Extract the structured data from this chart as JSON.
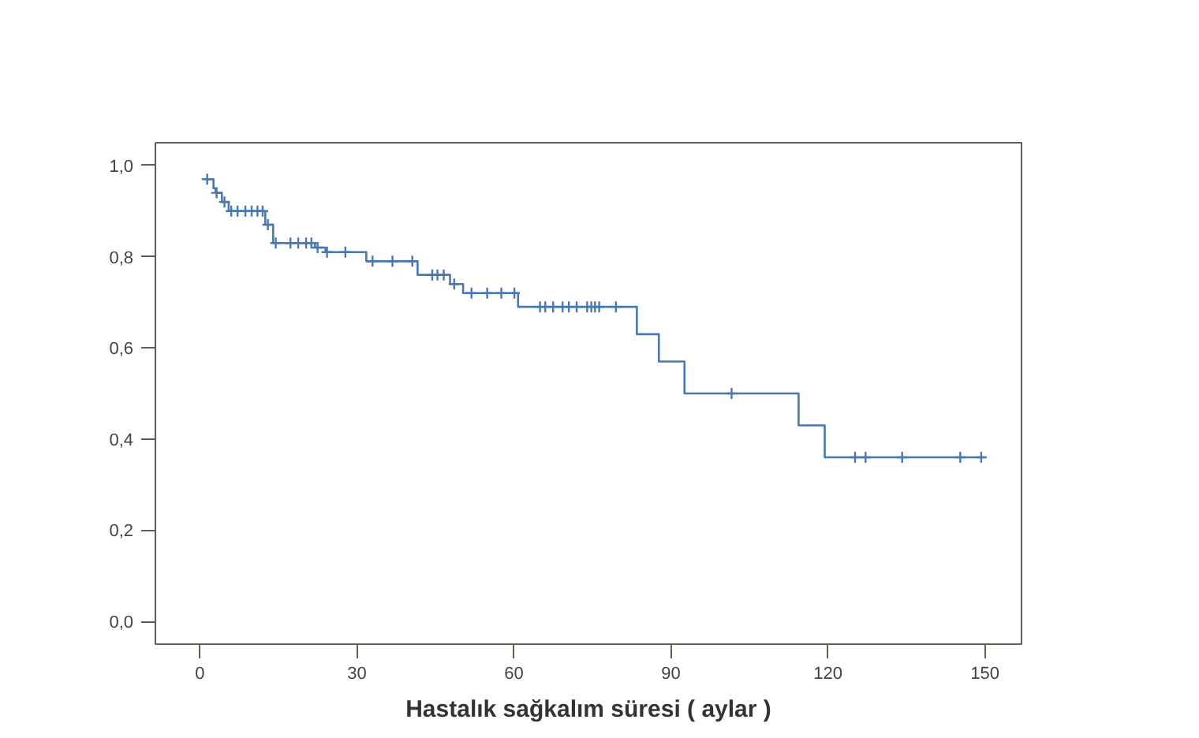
{
  "chart_data": {
    "type": "step",
    "xlabel": "Hastalık sağkalım süresi ( aylar )",
    "xlim": [
      -8.5,
      157
    ],
    "ylim": [
      -0.05,
      1.05
    ],
    "xticks": [
      0,
      30,
      60,
      90,
      120,
      150
    ],
    "yticks": [
      {
        "value": 0,
        "label": "0,0"
      },
      {
        "value": 0.2,
        "label": "0,2"
      },
      {
        "value": 0.4,
        "label": "0,4"
      },
      {
        "value": 0.6,
        "label": "0,6"
      },
      {
        "value": 0.8,
        "label": "0,8"
      },
      {
        "value": 1.0,
        "label": "1,0"
      }
    ],
    "grid": false,
    "series": [
      {
        "color": "#4a78b0",
        "line_style": "solid",
        "x": [
          1.0,
          2.6,
          3.0,
          4.2,
          5.5,
          12.5,
          14.0,
          22.0,
          24.0,
          31.8,
          41.6,
          47.8,
          50.3,
          60.8,
          83.5,
          87.7,
          92.6,
          114.4,
          119.4,
          149.8
        ],
        "values": [
          0.97,
          0.95,
          0.94,
          0.92,
          0.9,
          0.87,
          0.83,
          0.82,
          0.81,
          0.79,
          0.76,
          0.74,
          0.72,
          0.69,
          0.63,
          0.57,
          0.5,
          0.43,
          0.36,
          0.36
        ]
      },
      {
        "type": "scatter",
        "marker": "cross",
        "color": "#4a78b0",
        "x": [
          1.4,
          3.2,
          4.7,
          6.0,
          7.2,
          8.7,
          9.9,
          11.0,
          12.0,
          13.0,
          14.5,
          17.3,
          18.8,
          20.3,
          21.3,
          22.5,
          24.3,
          27.8,
          33.0,
          36.8,
          40.6,
          44.4,
          45.4,
          46.6,
          48.6,
          51.9,
          54.9,
          57.6,
          60.1,
          65.0,
          66.0,
          67.5,
          69.3,
          70.5,
          72.0,
          74.0,
          74.8,
          75.5,
          76.3,
          79.5,
          101.6,
          125.2,
          127.2,
          134.2,
          145.3,
          149.3
        ],
        "values": [
          0.97,
          0.94,
          0.92,
          0.9,
          0.9,
          0.9,
          0.9,
          0.9,
          0.9,
          0.87,
          0.83,
          0.83,
          0.83,
          0.83,
          0.83,
          0.82,
          0.81,
          0.81,
          0.79,
          0.79,
          0.79,
          0.76,
          0.76,
          0.76,
          0.74,
          0.72,
          0.72,
          0.72,
          0.72,
          0.69,
          0.69,
          0.69,
          0.69,
          0.69,
          0.69,
          0.69,
          0.69,
          0.69,
          0.69,
          0.69,
          0.5,
          0.36,
          0.36,
          0.36,
          0.36,
          0.36
        ]
      }
    ]
  }
}
